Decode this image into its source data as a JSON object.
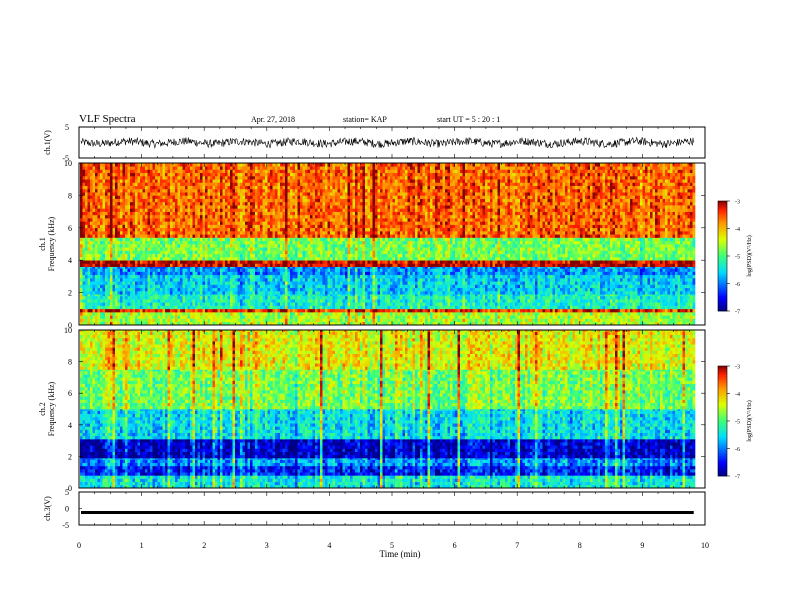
{
  "header": {
    "title": "VLF Spectra",
    "date": "Apr. 27, 2018",
    "station": "station= KAP",
    "start_ut": "start UT =  5 : 20 : 1"
  },
  "chart_data": [
    {
      "type": "line",
      "panel": "ch1-waveform",
      "ylabel": "ch.1(V)",
      "ylim": [
        -5,
        5
      ],
      "y_ticks": [
        "5",
        "-5"
      ],
      "description_values": "noisy waveform, amplitude mostly between -1.5 and 1.5 V"
    },
    {
      "type": "heatmap",
      "panel": "ch1-spectrogram",
      "ylabel": "ch.1\nFrequency  (kHz)",
      "ylim": [
        0,
        10
      ],
      "y_ticks": [
        "0",
        "2",
        "4",
        "6",
        "8",
        "10"
      ],
      "colorbar": {
        "label": "log(PSD)(V²/Hz)",
        "range": [
          -7,
          -3
        ],
        "ticks": [
          "-3",
          "-4",
          "-5",
          "-6",
          "-7"
        ]
      },
      "bands": [
        {
          "from": 0,
          "to": 0.8,
          "level": -4.6
        },
        {
          "from": 0.8,
          "to": 1.0,
          "level": -3.4
        },
        {
          "from": 1.0,
          "to": 1.9,
          "level": -5.3
        },
        {
          "from": 1.9,
          "to": 3.1,
          "level": -5.6
        },
        {
          "from": 3.1,
          "to": 3.6,
          "level": -5.9
        },
        {
          "from": 3.6,
          "to": 4.0,
          "level": -3.1
        },
        {
          "from": 4.0,
          "to": 5.4,
          "level": -4.8
        },
        {
          "from": 5.4,
          "to": 5.6,
          "level": -3.5
        },
        {
          "from": 5.6,
          "to": 10.0,
          "level": -3.6
        }
      ]
    },
    {
      "type": "heatmap",
      "panel": "ch2-spectrogram",
      "ylabel": "ch.2\nFrequency  (kHz)",
      "ylim": [
        0,
        10
      ],
      "y_ticks": [
        "0",
        "2",
        "4",
        "6",
        "8",
        "10"
      ],
      "colorbar": {
        "label": "log(PSD)(V²/Hz)",
        "range": [
          -7,
          -3
        ],
        "ticks": [
          "-3",
          "-4",
          "-5",
          "-6",
          "-7"
        ]
      },
      "bands": [
        {
          "from": 0,
          "to": 0.8,
          "level": -5.4
        },
        {
          "from": 0.8,
          "to": 1.4,
          "level": -6.4
        },
        {
          "from": 1.4,
          "to": 1.9,
          "level": -5.9
        },
        {
          "from": 1.9,
          "to": 3.1,
          "level": -6.7
        },
        {
          "from": 3.1,
          "to": 5.0,
          "level": -5.5
        },
        {
          "from": 5.0,
          "to": 7.5,
          "level": -4.8
        },
        {
          "from": 7.5,
          "to": 10.0,
          "level": -4.3
        }
      ]
    },
    {
      "type": "line",
      "panel": "ch3-waveform",
      "ylabel": "ch.3(V)",
      "ylim": [
        -5,
        5
      ],
      "y_ticks": [
        "5",
        "0",
        "-5"
      ],
      "constant_value": -1.2
    }
  ],
  "xaxis": {
    "label": "Time  (min)",
    "range": [
      0,
      10
    ],
    "ticks": [
      "0",
      "1",
      "2",
      "3",
      "4",
      "5",
      "6",
      "7",
      "8",
      "9",
      "10"
    ],
    "data_end": 9.82
  },
  "colors": {
    "waveform": "#000000",
    "frame": "#000000"
  }
}
